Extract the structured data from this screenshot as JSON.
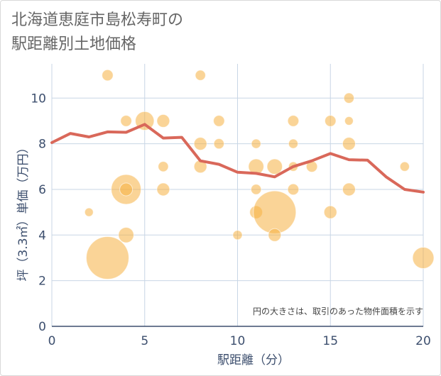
{
  "header": {
    "title_line1": "北海道恵庭市島松寿町の",
    "title_line2": "駅距離別土地価格"
  },
  "colors": {
    "bubble": "#f5b041",
    "line": "#d9685a",
    "grid": "#c8d6e5",
    "axis_text": "#3d4f6e"
  },
  "chart_data": {
    "type": "scatter",
    "title": "北海道恵庭市島松寿町の駅距離別土地価格",
    "xlabel": "駅距離（分）",
    "ylabel": "坪（3.3㎡）単価（万円）",
    "xlim": [
      0,
      20
    ],
    "ylim": [
      0,
      11.5
    ],
    "x_ticks": [
      0,
      5,
      10,
      15,
      20
    ],
    "y_ticks": [
      0,
      2,
      4,
      6,
      8,
      10
    ],
    "grid": true,
    "note": "円の大きさは、取引のあった物件面積を示す",
    "series": [
      {
        "kind": "bubble",
        "points": [
          {
            "x": 2,
            "y": 5,
            "r": 1
          },
          {
            "x": 3,
            "y": 11,
            "r": 1.3
          },
          {
            "x": 3,
            "y": 3,
            "r": 5
          },
          {
            "x": 4,
            "y": 9,
            "r": 1.3
          },
          {
            "x": 4,
            "y": 6,
            "r": 3.5
          },
          {
            "x": 4,
            "y": 6,
            "r": 1.5
          },
          {
            "x": 4,
            "y": 4,
            "r": 1.8
          },
          {
            "x": 5,
            "y": 9,
            "r": 2.2
          },
          {
            "x": 6,
            "y": 9,
            "r": 1.5
          },
          {
            "x": 6,
            "y": 7,
            "r": 1.2
          },
          {
            "x": 6,
            "y": 6,
            "r": 1.5
          },
          {
            "x": 8,
            "y": 11,
            "r": 1.2
          },
          {
            "x": 8,
            "y": 8,
            "r": 1.5
          },
          {
            "x": 8,
            "y": 7,
            "r": 1.5
          },
          {
            "x": 9,
            "y": 9,
            "r": 1.3
          },
          {
            "x": 9,
            "y": 8,
            "r": 1.2
          },
          {
            "x": 10,
            "y": 4,
            "r": 1.1
          },
          {
            "x": 11,
            "y": 8,
            "r": 1.1
          },
          {
            "x": 11,
            "y": 7,
            "r": 1.8
          },
          {
            "x": 11,
            "y": 6,
            "r": 1.2
          },
          {
            "x": 11,
            "y": 5,
            "r": 1.5
          },
          {
            "x": 12,
            "y": 7,
            "r": 1.8
          },
          {
            "x": 12,
            "y": 5,
            "r": 5
          },
          {
            "x": 12,
            "y": 4,
            "r": 1.5
          },
          {
            "x": 13,
            "y": 9,
            "r": 1.3
          },
          {
            "x": 13,
            "y": 8,
            "r": 1.1
          },
          {
            "x": 13,
            "y": 7,
            "r": 1.1
          },
          {
            "x": 13,
            "y": 6,
            "r": 1.3
          },
          {
            "x": 14,
            "y": 7,
            "r": 1.3
          },
          {
            "x": 15,
            "y": 9,
            "r": 1.3
          },
          {
            "x": 15,
            "y": 5,
            "r": 1.5
          },
          {
            "x": 16,
            "y": 10,
            "r": 1.2
          },
          {
            "x": 16,
            "y": 9,
            "r": 1
          },
          {
            "x": 16,
            "y": 8,
            "r": 1.5
          },
          {
            "x": 16,
            "y": 6,
            "r": 1.5
          },
          {
            "x": 19,
            "y": 7,
            "r": 1.1
          },
          {
            "x": 20,
            "y": 3,
            "r": 2.5
          }
        ]
      },
      {
        "kind": "line",
        "x": [
          0,
          1,
          2,
          3,
          4,
          5,
          6,
          7,
          8,
          9,
          10,
          11,
          12,
          13,
          14,
          15,
          16,
          17,
          18,
          19,
          20
        ],
        "y": [
          8.05,
          8.45,
          8.3,
          8.52,
          8.5,
          8.85,
          8.25,
          8.28,
          7.25,
          7.1,
          6.75,
          6.7,
          6.55,
          7.0,
          7.25,
          7.57,
          7.3,
          7.28,
          6.55,
          6.0,
          5.88
        ]
      }
    ]
  }
}
